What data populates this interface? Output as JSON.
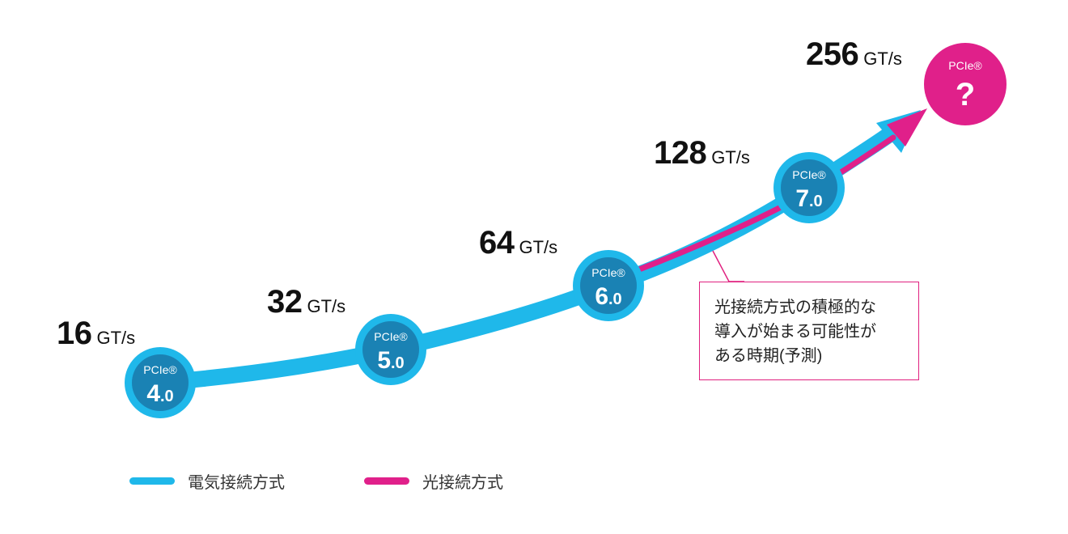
{
  "colors": {
    "electrical": "#1fb8ea",
    "badge_fill": "#1a82b4",
    "optical": "#e0208a"
  },
  "generations": [
    {
      "badge_label": "PCIe®",
      "version_major": "4",
      "version_minor": ".0",
      "speed_value": "16",
      "speed_unit": "GT/s"
    },
    {
      "badge_label": "PCIe®",
      "version_major": "5",
      "version_minor": ".0",
      "speed_value": "32",
      "speed_unit": "GT/s"
    },
    {
      "badge_label": "PCIe®",
      "version_major": "6",
      "version_minor": ".0",
      "speed_value": "64",
      "speed_unit": "GT/s"
    },
    {
      "badge_label": "PCIe®",
      "version_major": "7",
      "version_minor": ".0",
      "speed_value": "128",
      "speed_unit": "GT/s"
    },
    {
      "badge_label": "PCIe®",
      "version_major": "?",
      "version_minor": "",
      "speed_value": "256",
      "speed_unit": "GT/s"
    }
  ],
  "callout": {
    "lines": [
      "光接続方式の積極的な",
      "導入が始まる可能性が",
      "ある時期(予測)"
    ]
  },
  "legend": {
    "electrical_label": "電気接続方式",
    "optical_label": "光接続方式"
  }
}
